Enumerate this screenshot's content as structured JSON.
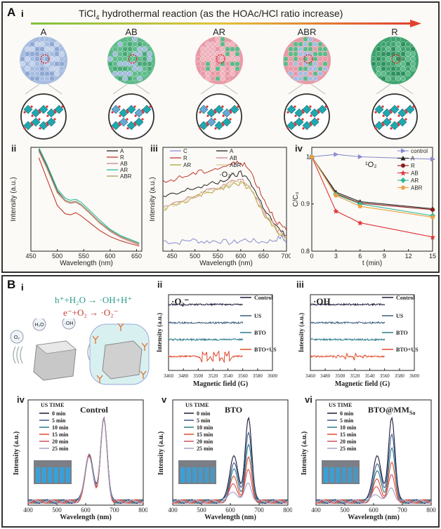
{
  "panelA": {
    "letter": "A",
    "sub_i": "i",
    "reaction_title_main": "TiCl",
    "reaction_title_sub": "4",
    "reaction_title_rest": " hydrothermal reaction (as the HOAc/HCl ratio increase)",
    "spheres": [
      {
        "label": "A",
        "colors": [
          "#a7bde0",
          "#c6d4ec",
          "#8fa8d4"
        ]
      },
      {
        "label": "AB",
        "colors": [
          "#5fbb8a",
          "#a7bde0",
          "#49a877"
        ]
      },
      {
        "label": "AR",
        "colors": [
          "#e89aa7",
          "#5fbb8a",
          "#f0b6c0"
        ]
      },
      {
        "label": "ABR",
        "colors": [
          "#e89aa7",
          "#5fbb8a",
          "#a7bde0"
        ]
      },
      {
        "label": "R",
        "colors": [
          "#3fa46f",
          "#5fbb8a",
          "#2f9160"
        ]
      }
    ]
  },
  "panelB": {
    "letter": "B",
    "sub_i": "i",
    "eq1": "h⁺+H₂O → ·OH+H⁺",
    "eq2": "e⁻+O₂ → ·O₂⁻",
    "bubble_labels": [
      "H₂O",
      "·OH",
      "O₂"
    ]
  },
  "chart_data": [
    {
      "id": "A-ii",
      "panel": "ii",
      "type": "line",
      "xlabel": "Wavelength (nm)",
      "ylabel": "Intensity (a.u.)",
      "xlim": [
        450,
        660
      ],
      "ylim": [
        0,
        1
      ],
      "xticks": [
        450,
        500,
        550,
        600,
        650
      ],
      "legend": [
        "A",
        "R",
        "AB",
        "AR",
        "ABR"
      ],
      "series": [
        {
          "name": "A",
          "color": "#222222",
          "x": [
            465,
            480,
            500,
            515,
            525,
            535,
            545,
            560,
            580,
            600,
            620,
            640,
            655
          ],
          "y": [
            0.98,
            0.82,
            0.58,
            0.49,
            0.47,
            0.48,
            0.45,
            0.38,
            0.28,
            0.2,
            0.14,
            0.1,
            0.07
          ]
        },
        {
          "name": "R",
          "color": "#c0392b",
          "x": [
            465,
            480,
            500,
            515,
            525,
            535,
            545,
            560,
            580,
            600,
            620,
            640,
            655
          ],
          "y": [
            0.9,
            0.7,
            0.44,
            0.36,
            0.35,
            0.37,
            0.34,
            0.28,
            0.2,
            0.14,
            0.1,
            0.07,
            0.05
          ]
        },
        {
          "name": "AB",
          "color": "#d08090",
          "x": [
            465,
            480,
            500,
            515,
            525,
            535,
            545,
            560,
            580,
            600,
            620,
            640,
            655
          ],
          "y": [
            0.96,
            0.8,
            0.56,
            0.48,
            0.46,
            0.47,
            0.44,
            0.37,
            0.27,
            0.19,
            0.13,
            0.09,
            0.06
          ]
        },
        {
          "name": "AR",
          "color": "#2eb8a6",
          "x": [
            465,
            480,
            500,
            515,
            525,
            535,
            545,
            560,
            580,
            600,
            620,
            640,
            655
          ],
          "y": [
            1.0,
            0.84,
            0.6,
            0.51,
            0.49,
            0.5,
            0.47,
            0.4,
            0.3,
            0.21,
            0.15,
            0.11,
            0.08
          ]
        },
        {
          "name": "ABR",
          "color": "#a0a060",
          "x": [
            465,
            480,
            500,
            515,
            525,
            535,
            545,
            560,
            580,
            600,
            620,
            640,
            655
          ],
          "y": [
            0.97,
            0.81,
            0.57,
            0.49,
            0.47,
            0.48,
            0.45,
            0.38,
            0.28,
            0.2,
            0.14,
            0.1,
            0.07
          ]
        }
      ]
    },
    {
      "id": "A-iii",
      "panel": "iii",
      "type": "line",
      "xlabel": "Wavelength (nm)",
      "ylabel": "Intensity (a.u.)",
      "annotation": "·O₂⁻",
      "xlim": [
        430,
        700
      ],
      "ylim": [
        0,
        1
      ],
      "xticks": [
        450,
        500,
        550,
        600,
        650,
        700
      ],
      "legend": [
        "C",
        "A",
        "R",
        "AB",
        "AR",
        "ABR"
      ],
      "series": [
        {
          "name": "C",
          "color": "#8a8ad0",
          "x": [
            430,
            460,
            490,
            520,
            550,
            580,
            610,
            640,
            670,
            690,
            700
          ],
          "y": [
            0.1,
            0.08,
            0.11,
            0.09,
            0.1,
            0.08,
            0.11,
            0.09,
            0.1,
            0.14,
            0.08
          ]
        },
        {
          "name": "A",
          "color": "#222222",
          "x": [
            430,
            460,
            490,
            520,
            550,
            580,
            600,
            620,
            640,
            660,
            680,
            700
          ],
          "y": [
            0.52,
            0.55,
            0.6,
            0.63,
            0.66,
            0.72,
            0.75,
            0.68,
            0.5,
            0.35,
            0.22,
            0.15
          ]
        },
        {
          "name": "R",
          "color": "#c0392b",
          "x": [
            430,
            460,
            490,
            520,
            550,
            580,
            600,
            620,
            640,
            660,
            680,
            700
          ],
          "y": [
            0.66,
            0.7,
            0.74,
            0.77,
            0.8,
            0.84,
            0.86,
            0.78,
            0.6,
            0.42,
            0.28,
            0.2
          ]
        },
        {
          "name": "AB",
          "color": "#d08090",
          "x": [
            430,
            460,
            490,
            520,
            550,
            580,
            600,
            620,
            640,
            660,
            680,
            700
          ],
          "y": [
            0.44,
            0.48,
            0.52,
            0.57,
            0.61,
            0.66,
            0.69,
            0.62,
            0.46,
            0.32,
            0.2,
            0.14
          ]
        },
        {
          "name": "AR",
          "color": "#b0a040",
          "x": [
            430,
            460,
            490,
            520,
            550,
            580,
            600,
            620,
            640,
            660,
            680,
            700
          ],
          "y": [
            0.4,
            0.45,
            0.5,
            0.55,
            0.6,
            0.64,
            0.66,
            0.6,
            0.44,
            0.3,
            0.19,
            0.13
          ]
        },
        {
          "name": "ABR",
          "color": "#d8c890",
          "x": [
            430,
            460,
            490,
            520,
            550,
            580,
            600,
            620,
            640,
            660,
            680,
            700
          ],
          "y": [
            0.42,
            0.46,
            0.51,
            0.56,
            0.6,
            0.65,
            0.67,
            0.61,
            0.45,
            0.31,
            0.2,
            0.13
          ]
        }
      ]
    },
    {
      "id": "A-iv",
      "panel": "iv",
      "type": "line",
      "xlabel": "t (min)",
      "ylabel": "C/C₀",
      "annotation": "¹O₂",
      "xlim": [
        0,
        15
      ],
      "ylim": [
        0.8,
        1.02
      ],
      "xticks": [
        0,
        3,
        6,
        9,
        12,
        15
      ],
      "yticks": [
        0.8,
        0.9,
        1.0
      ],
      "legend": [
        "control",
        "A",
        "R",
        "AB",
        "AR",
        "ABR"
      ],
      "series": [
        {
          "name": "control",
          "color": "#8a8ad0",
          "marker": "triangle-right",
          "x": [
            0,
            3,
            6,
            15
          ],
          "y": [
            1.0,
            1.005,
            1.0,
            0.995
          ]
        },
        {
          "name": "A",
          "color": "#222222",
          "marker": "triangle",
          "x": [
            0,
            3,
            6,
            15
          ],
          "y": [
            1.0,
            0.925,
            0.905,
            0.89
          ]
        },
        {
          "name": "R",
          "color": "#8b1a1a",
          "marker": "circle",
          "x": [
            0,
            3,
            6,
            15
          ],
          "y": [
            1.0,
            0.922,
            0.902,
            0.888
          ]
        },
        {
          "name": "AB",
          "color": "#e0343a",
          "marker": "star",
          "x": [
            0,
            3,
            6,
            15
          ],
          "y": [
            1.0,
            0.885,
            0.86,
            0.83
          ]
        },
        {
          "name": "AR",
          "color": "#2eb89a",
          "marker": "diamond",
          "x": [
            0,
            3,
            6,
            15
          ],
          "y": [
            1.0,
            0.92,
            0.9,
            0.875
          ]
        },
        {
          "name": "ABR",
          "color": "#f0a040",
          "marker": "circle",
          "x": [
            0,
            3,
            6,
            15
          ],
          "y": [
            1.0,
            0.918,
            0.895,
            0.872
          ]
        }
      ]
    },
    {
      "id": "B-ii",
      "panel": "ii",
      "type": "line",
      "xlabel": "Magnetic field (G)",
      "ylabel": "Intensity (a.u.)",
      "annotation": "·O₂⁻",
      "xlim": [
        3460,
        3600
      ],
      "xticks": [
        3460,
        3480,
        3500,
        3520,
        3540,
        3560,
        3580,
        3600
      ],
      "legend": [
        "Control",
        "US",
        "BTO",
        "BTO+US"
      ]
    },
    {
      "id": "B-iii",
      "panel": "iii",
      "type": "line",
      "xlabel": "Magnetic field (G)",
      "ylabel": "Intensity (a.u.)",
      "annotation": "·OH",
      "xlim": [
        3460,
        3600
      ],
      "xticks": [
        3460,
        3480,
        3500,
        3520,
        3540,
        3560,
        3580,
        3600
      ],
      "legend": [
        "Control",
        "US",
        "BTO",
        "BTO+US"
      ]
    },
    {
      "id": "B-iv",
      "panel": "iv",
      "type": "line",
      "title": "Control",
      "xlabel": "Wavelength (nm)",
      "ylabel": "Intensity (a.u.)",
      "xlim": [
        400,
        800
      ],
      "xticks": [
        400,
        500,
        600,
        700,
        800
      ],
      "legend_title": "US TIME",
      "legend": [
        "0 min",
        "5 min",
        "10 min",
        "15 min",
        "20 min",
        "25 min"
      ],
      "peak_heights": [
        1.0,
        0.98,
        0.97,
        0.95,
        0.96,
        0.97
      ]
    },
    {
      "id": "B-v",
      "panel": "v",
      "type": "line",
      "title": "BTO",
      "xlabel": "Wavelength (nm)",
      "ylabel": "Intensity (a.u.)",
      "xlim": [
        400,
        800
      ],
      "xticks": [
        400,
        500,
        600,
        700,
        800
      ],
      "legend_title": "US TIME",
      "legend": [
        "0 min",
        "5 min",
        "10 min",
        "15 min",
        "20 min",
        "25 min"
      ],
      "peak_heights": [
        1.0,
        0.82,
        0.66,
        0.5,
        0.36,
        0.22
      ]
    },
    {
      "id": "B-vi",
      "panel": "vi",
      "type": "line",
      "title": "BTO@MM",
      "title_sub": "Sa",
      "xlabel": "Wavelength (nm)",
      "ylabel": "Intensity (a.u.)",
      "xlim": [
        400,
        800
      ],
      "xticks": [
        400,
        500,
        600,
        700,
        800
      ],
      "legend_title": "US TIME",
      "legend": [
        "0 min",
        "5 min",
        "10 min",
        "15 min",
        "20 min",
        "25 min"
      ],
      "peak_heights": [
        1.0,
        0.8,
        0.62,
        0.44,
        0.3,
        0.16
      ]
    }
  ],
  "uv_colors": [
    "#1a1a3a",
    "#3a5a8a",
    "#2a7a8a",
    "#e04a2a",
    "#d05060",
    "#a0a0c0"
  ]
}
